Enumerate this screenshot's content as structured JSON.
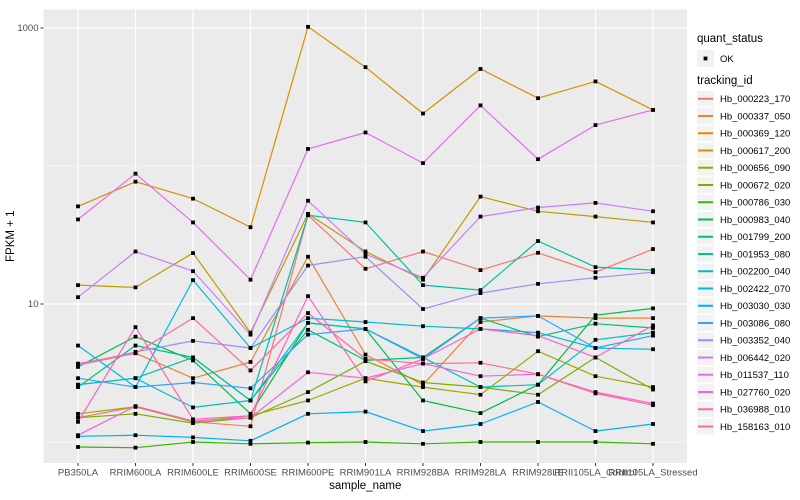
{
  "chart_data": {
    "type": "line",
    "title": "",
    "xlabel": "sample_name",
    "ylabel": "FPKM + 1",
    "y_scale": "log10",
    "y_axis_ticks": [
      {
        "label": "1000",
        "value": 1000
      },
      {
        "label": "10",
        "value": 10
      }
    ],
    "y_minor_gridline_values": [
      100,
      1
    ],
    "ylim": [
      0.7,
      1350
    ],
    "grid": true,
    "panel_bg": "#EBEBEB",
    "gridline_color": "#FFFFFF",
    "tick_text_color": "#4D4D4D",
    "axis_title_color": "#000000",
    "point_color": "#000000",
    "legend_key_bg": "#F2F2F2",
    "legend_position": "right",
    "categories": [
      "PB350LA",
      "RRIM600LA",
      "RRIM600LE",
      "RRIM600SE",
      "RRIM600PE",
      "RRIM901LA",
      "RRIM928BA",
      "RRIM928LA",
      "RRIM928LE",
      "RRII105LA_Control",
      "RRII105LA_Stressed"
    ],
    "legend": {
      "quant_status": {
        "title": "quant_status",
        "items": [
          {
            "label": "OK",
            "marker": "black-point"
          }
        ]
      },
      "tracking_id": {
        "title": "tracking_id"
      }
    },
    "series": [
      {
        "name": "Hb_000223_170",
        "color": "#F8766D",
        "values": [
          1.5,
          1.8,
          1.4,
          1.3,
          44,
          18,
          24,
          17.6,
          23.5,
          17,
          25
        ]
      },
      {
        "name": "Hb_000337_050",
        "color": "#EA8331",
        "values": [
          3.6,
          4.4,
          2.9,
          3.8,
          22,
          4.3,
          2.6,
          7.4,
          8.2,
          7.9,
          7.9
        ]
      },
      {
        "name": "Hb_000369_120",
        "color": "#D89000",
        "values": [
          51,
          77,
          58,
          36,
          1020,
          520,
          240,
          505,
          310,
          410,
          255
        ]
      },
      {
        "name": "Hb_000617_200",
        "color": "#C09B00",
        "values": [
          13.7,
          13.2,
          23.4,
          6.2,
          45,
          24,
          15,
          60,
          47,
          43,
          39
        ]
      },
      {
        "name": "Hb_000656_090",
        "color": "#A3A500",
        "values": [
          1.6,
          1.8,
          1.4,
          1.55,
          2.0,
          2.9,
          2.5,
          2.2,
          4.55,
          3.0,
          2.5
        ]
      },
      {
        "name": "Hb_000672_020",
        "color": "#7CAE00",
        "values": [
          1.5,
          1.6,
          1.37,
          1.5,
          2.3,
          3.85,
          2.7,
          2.5,
          2.2,
          4.1,
          2.4
        ]
      },
      {
        "name": "Hb_000786_030",
        "color": "#39B600",
        "values": [
          0.92,
          0.91,
          1.0,
          0.97,
          0.99,
          1.0,
          0.97,
          1.0,
          1.0,
          1.0,
          0.97
        ]
      },
      {
        "name": "Hb_000983_040",
        "color": "#00BB4E",
        "values": [
          3.5,
          5.8,
          3.9,
          1.6,
          7.3,
          6.6,
          2.0,
          1.62,
          2.6,
          8.3,
          9.3
        ]
      },
      {
        "name": "Hb_001799_200",
        "color": "#00BF7D",
        "values": [
          2.5,
          5.0,
          4.1,
          2.0,
          6.5,
          3.9,
          4.1,
          7.9,
          5.8,
          7.2,
          6.7
        ]
      },
      {
        "name": "Hb_001953_080",
        "color": "#00C1A3",
        "values": [
          2.6,
          2.9,
          4.1,
          2.0,
          44,
          39,
          13.7,
          12.6,
          28.6,
          18.5,
          17.6
        ]
      },
      {
        "name": "Hb_002200_040",
        "color": "#00BFC4",
        "values": [
          2.6,
          2.9,
          1.78,
          2.0,
          7.3,
          6.6,
          4.1,
          2.5,
          2.6,
          5.5,
          6.2
        ]
      },
      {
        "name": "Hb_002422_070",
        "color": "#00BADE",
        "values": [
          5.0,
          2.5,
          14.9,
          4.8,
          7.9,
          7.4,
          6.9,
          6.6,
          6.2,
          4.8,
          4.7
        ]
      },
      {
        "name": "Hb_003030_030",
        "color": "#00B0F6",
        "values": [
          1.1,
          1.12,
          1.08,
          1.02,
          1.6,
          1.66,
          1.2,
          1.35,
          1.95,
          1.2,
          1.35
        ]
      },
      {
        "name": "Hb_003086_080",
        "color": "#35A2FF",
        "values": [
          2.9,
          2.5,
          2.7,
          2.45,
          6.0,
          6.6,
          4.0,
          7.9,
          8.2,
          4.8,
          5.9
        ]
      },
      {
        "name": "Hb_003352_040",
        "color": "#9590FF",
        "values": [
          3.6,
          4.5,
          5.4,
          4.8,
          19,
          22,
          9.2,
          12,
          14,
          15.5,
          17
        ]
      },
      {
        "name": "Hb_006442_020",
        "color": "#C77CFF",
        "values": [
          11.2,
          24,
          17.3,
          6.0,
          56,
          23,
          15.5,
          43,
          50,
          54,
          47
        ]
      },
      {
        "name": "Hb_011537_110",
        "color": "#E76BF3",
        "values": [
          41,
          88,
          39,
          15,
          133,
          175,
          105,
          275,
          112,
          198,
          255
        ]
      },
      {
        "name": "Hb_027760_020",
        "color": "#FA62DB",
        "values": [
          1.12,
          1.82,
          1.42,
          1.5,
          3.2,
          2.9,
          3.7,
          3.0,
          3.1,
          2.3,
          1.9
        ]
      },
      {
        "name": "Hb_036988_010",
        "color": "#FF62BC",
        "values": [
          1.4,
          6.8,
          1.46,
          1.55,
          11.4,
          2.75,
          4.0,
          6.6,
          5.9,
          4.1,
          7.0
        ]
      },
      {
        "name": "Hb_158163_010",
        "color": "#FF6A98",
        "values": [
          3.7,
          4.4,
          7.9,
          3.3,
          8.6,
          4.0,
          3.7,
          3.75,
          3.1,
          2.25,
          1.85
        ]
      }
    ]
  }
}
